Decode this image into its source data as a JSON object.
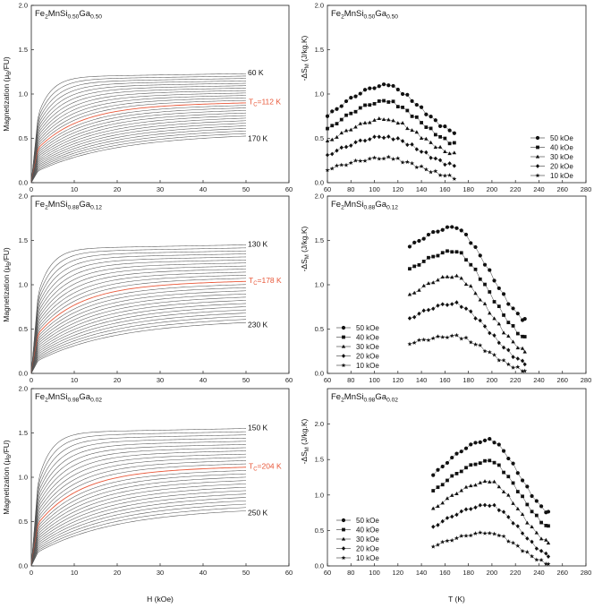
{
  "colors": {
    "curve": "#555555",
    "tc_curve": "#e8583a",
    "axis": "#222222"
  },
  "labels": {
    "m_ylabel": "Magnetization (μB/FU)",
    "h_xlabel": "H (kOe)",
    "s_ylabel": "-ΔSM (J/kg.K)",
    "t_xlabel": "T (K)"
  },
  "chart_data": [
    {
      "type": "line",
      "panel": "m",
      "row": 0,
      "title": "Fe2MnSi0.50Ga0.50",
      "xlim": [
        0,
        60
      ],
      "ylim": [
        0,
        2.0
      ],
      "xticks": [
        0,
        10,
        20,
        30,
        40,
        50,
        60
      ],
      "yticks": [
        0.0,
        0.5,
        1.0,
        1.5,
        2.0
      ],
      "curves": {
        "count": 26,
        "ms_top": 1.23,
        "ms_bottom": 0.55,
        "tc_index": 12
      },
      "annotations": {
        "top": "60 K",
        "bottom": "170 K",
        "tc": "TC=112 K"
      }
    },
    {
      "type": "scatter",
      "panel": "s",
      "row": 0,
      "title": "Fe2MnSi0.50Ga0.50",
      "xlim": [
        60,
        280
      ],
      "ylim": [
        0,
        2.0
      ],
      "xticks": [
        60,
        80,
        100,
        120,
        140,
        160,
        180,
        200,
        220,
        240,
        260,
        280
      ],
      "yticks": [
        0.0,
        0.5,
        1.0,
        1.5,
        2.0
      ],
      "legend_position": "right",
      "temps": [
        60,
        64,
        68,
        72,
        76,
        80,
        84,
        88,
        92,
        96,
        100,
        104,
        108,
        112,
        116,
        120,
        124,
        128,
        132,
        136,
        140,
        144,
        148,
        152,
        156,
        160,
        164,
        168
      ],
      "series": [
        {
          "name": "50 kOe",
          "marker": "circle",
          "peak": 1.1,
          "start": 0.75,
          "end": 0.57
        },
        {
          "name": "40 kOe",
          "marker": "square",
          "peak": 0.92,
          "start": 0.6,
          "end": 0.44
        },
        {
          "name": "30 kOe",
          "marker": "triangle",
          "peak": 0.72,
          "start": 0.46,
          "end": 0.32
        },
        {
          "name": "20 kOe",
          "marker": "diamond",
          "peak": 0.52,
          "start": 0.31,
          "end": 0.19
        },
        {
          "name": "10 kOe",
          "marker": "star",
          "peak": 0.28,
          "start": 0.15,
          "end": 0.06
        }
      ],
      "peak_T": 112
    },
    {
      "type": "line",
      "panel": "m",
      "row": 1,
      "title": "Fe2MnSi0.88Ga0.12",
      "xlim": [
        0,
        60
      ],
      "ylim": [
        0,
        2.0
      ],
      "xticks": [
        0,
        10,
        20,
        30,
        40,
        50,
        60
      ],
      "yticks": [
        0.0,
        0.5,
        1.0,
        1.5,
        2.0
      ],
      "curves": {
        "count": 26,
        "ms_top": 1.45,
        "ms_bottom": 0.6,
        "tc_index": 12
      },
      "annotations": {
        "top": "130 K",
        "bottom": "230 K",
        "tc": "TC=178 K"
      }
    },
    {
      "type": "scatter",
      "panel": "s",
      "row": 1,
      "title": "Fe2MnSi0.88Ga0.12",
      "xlim": [
        60,
        280
      ],
      "ylim": [
        0,
        2.0
      ],
      "xticks": [
        60,
        80,
        100,
        120,
        140,
        160,
        180,
        200,
        220,
        240,
        260,
        280
      ],
      "yticks": [
        0.0,
        0.5,
        1.0,
        1.5,
        2.0
      ],
      "legend_position": "left",
      "temps": [
        130,
        134,
        138,
        142,
        146,
        150,
        154,
        158,
        162,
        166,
        170,
        174,
        178,
        182,
        186,
        190,
        194,
        198,
        202,
        206,
        210,
        214,
        218,
        222,
        226,
        228
      ],
      "series": [
        {
          "name": "50 kOe",
          "marker": "circle",
          "peak": 1.65,
          "start": 1.43,
          "end": 0.6
        },
        {
          "name": "40 kOe",
          "marker": "square",
          "peak": 1.38,
          "start": 1.17,
          "end": 0.4
        },
        {
          "name": "30 kOe",
          "marker": "triangle",
          "peak": 1.1,
          "start": 0.88,
          "end": 0.25
        },
        {
          "name": "20 kOe",
          "marker": "diamond",
          "peak": 0.79,
          "start": 0.62,
          "end": 0.12
        },
        {
          "name": "10 kOe",
          "marker": "star",
          "peak": 0.42,
          "start": 0.34,
          "end": 0.03
        }
      ],
      "peak_T": 170
    },
    {
      "type": "line",
      "panel": "m",
      "row": 2,
      "title": "Fe2MnSi0.98Ga0.02",
      "xlim": [
        0,
        60
      ],
      "ylim": [
        0,
        2.0
      ],
      "xticks": [
        0,
        10,
        20,
        30,
        40,
        50,
        60
      ],
      "yticks": [
        0.0,
        0.5,
        1.0,
        1.5,
        2.0
      ],
      "curves": {
        "count": 26,
        "ms_top": 1.55,
        "ms_bottom": 0.65,
        "tc_index": 12
      },
      "annotations": {
        "top": "150 K",
        "bottom": "250 K",
        "tc": "TC=204 K"
      }
    },
    {
      "type": "scatter",
      "panel": "s",
      "row": 2,
      "title": "Fe2MnSi0.98Ga0.02",
      "xlim": [
        60,
        280
      ],
      "ylim": [
        0,
        2.5
      ],
      "xticks": [
        60,
        80,
        100,
        120,
        140,
        160,
        180,
        200,
        220,
        240,
        260,
        280
      ],
      "yticks": [
        0.0,
        0.5,
        1.0,
        1.5,
        2.0
      ],
      "legend_position": "left",
      "temps": [
        150,
        154,
        158,
        162,
        166,
        170,
        174,
        178,
        182,
        186,
        190,
        194,
        198,
        202,
        206,
        210,
        214,
        218,
        222,
        226,
        230,
        234,
        238,
        242,
        246,
        248
      ],
      "series": [
        {
          "name": "50 kOe",
          "marker": "circle",
          "peak": 1.78,
          "start": 1.28,
          "end": 0.75
        },
        {
          "name": "40 kOe",
          "marker": "square",
          "peak": 1.48,
          "start": 1.05,
          "end": 0.55
        },
        {
          "name": "30 kOe",
          "marker": "triangle",
          "peak": 1.19,
          "start": 0.8,
          "end": 0.33
        },
        {
          "name": "20 kOe",
          "marker": "diamond",
          "peak": 0.86,
          "start": 0.55,
          "end": 0.15
        },
        {
          "name": "10 kOe",
          "marker": "star",
          "peak": 0.47,
          "start": 0.28,
          "end": 0.03
        }
      ],
      "peak_T": 200
    }
  ]
}
